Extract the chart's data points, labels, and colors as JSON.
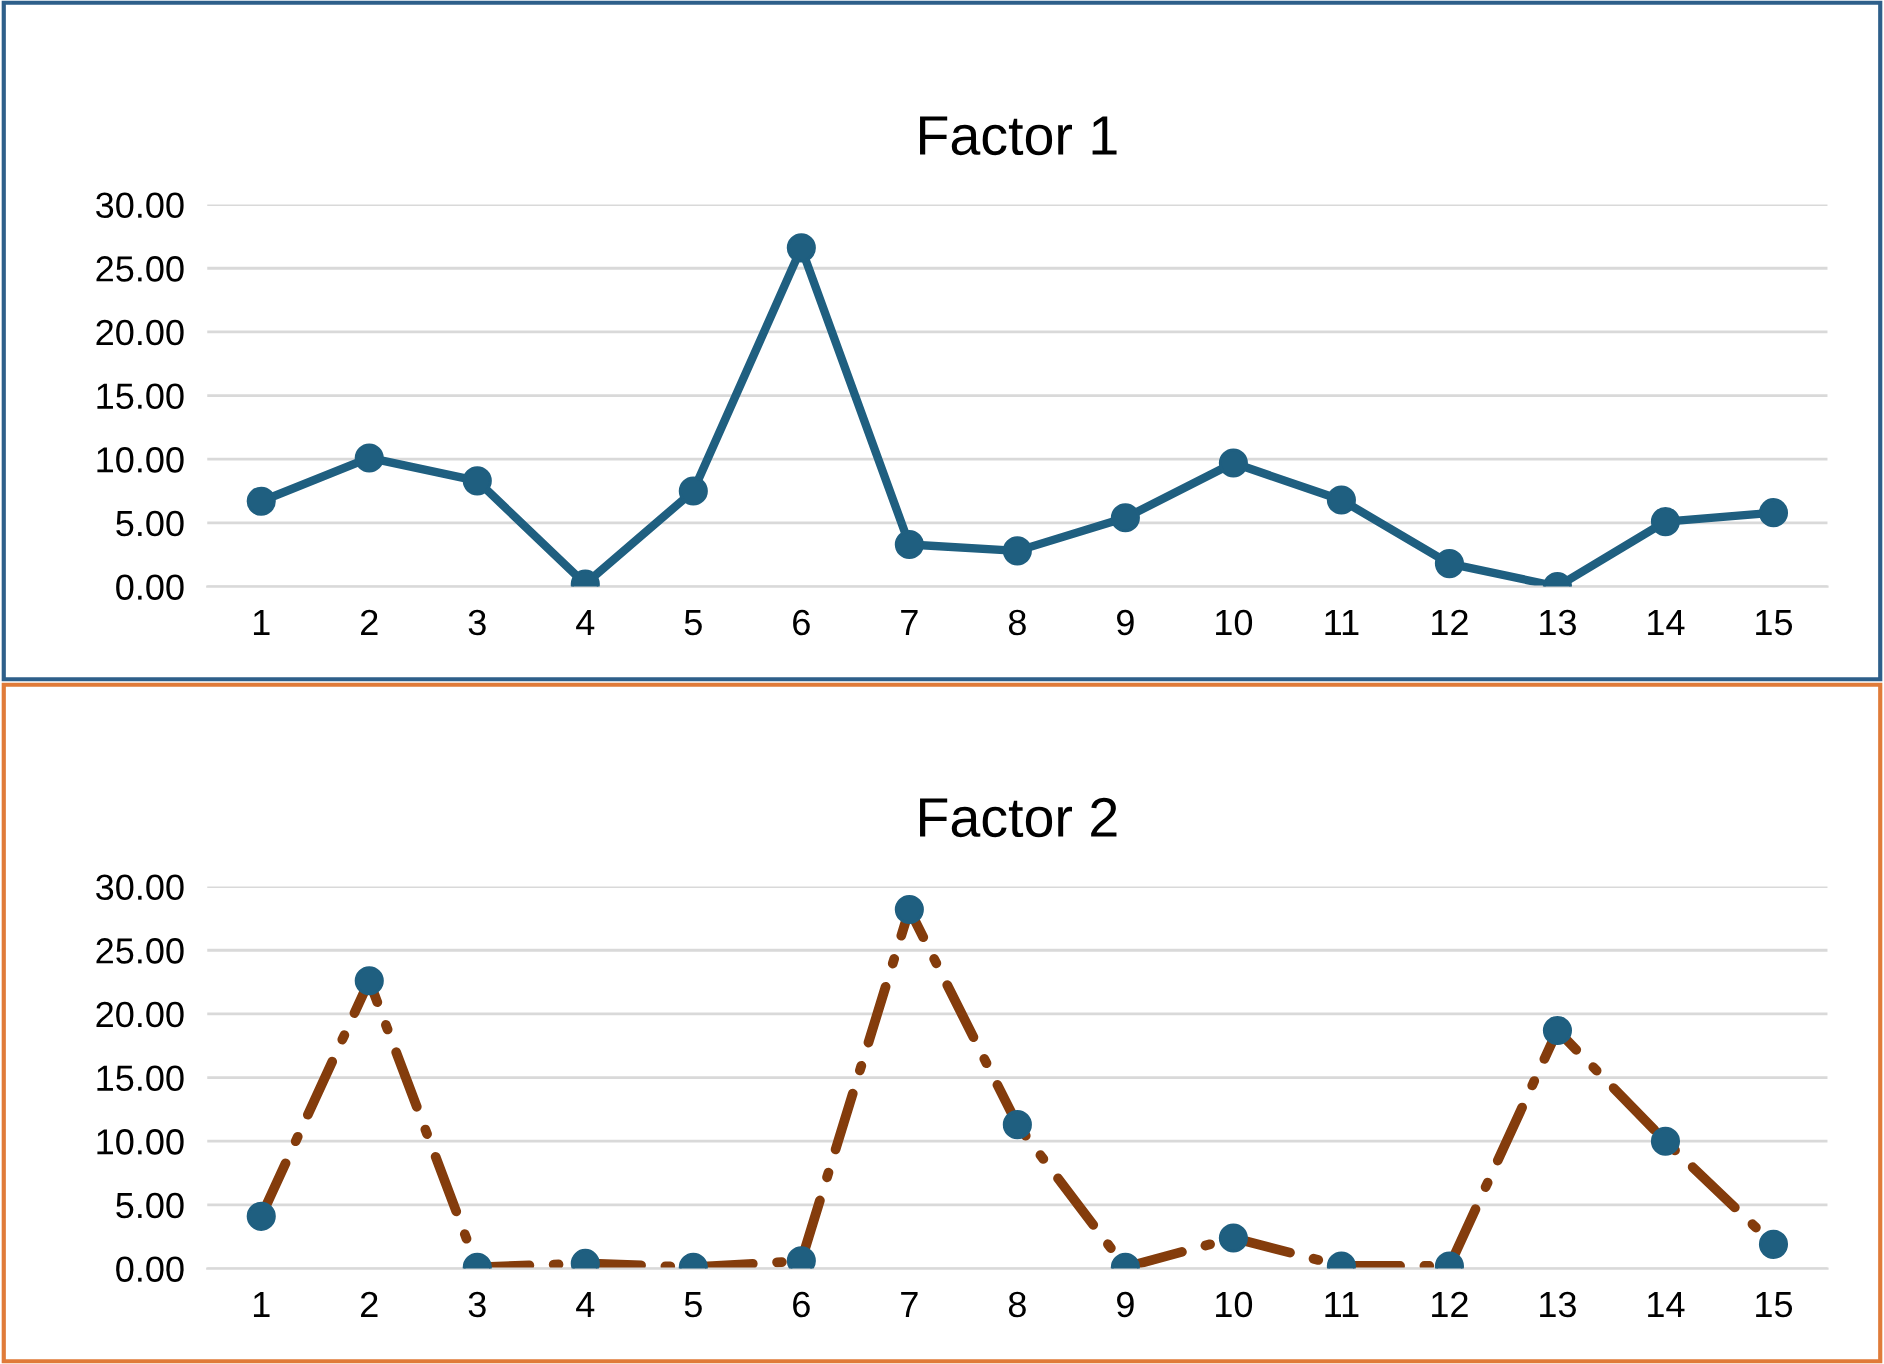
{
  "chart_data": [
    {
      "type": "line",
      "title": "Factor 1",
      "categories": [
        "1",
        "2",
        "3",
        "4",
        "5",
        "6",
        "7",
        "8",
        "9",
        "10",
        "11",
        "12",
        "13",
        "14",
        "15"
      ],
      "series": [
        {
          "color": "#1f5f80",
          "values": [
            6.7,
            10.1,
            8.3,
            0.2,
            7.5,
            26.6,
            3.3,
            2.8,
            5.4,
            9.7,
            6.8,
            1.8,
            0.0,
            5.1,
            5.8
          ]
        }
      ],
      "ylim": [
        0,
        30
      ],
      "yticks": [
        {
          "value": 0,
          "label": "0.00"
        },
        {
          "value": 5,
          "label": "5.00"
        },
        {
          "value": 10,
          "label": "10.00"
        },
        {
          "value": 15,
          "label": "15.00"
        },
        {
          "value": 20,
          "label": "20.00"
        },
        {
          "value": 25,
          "label": "25.00"
        },
        {
          "value": 30,
          "label": "30.00"
        }
      ],
      "grid": "y",
      "marker": "circle",
      "line_style": "solid"
    },
    {
      "type": "line",
      "title": "Factor 2",
      "categories": [
        "1",
        "2",
        "3",
        "4",
        "5",
        "6",
        "7",
        "8",
        "9",
        "10",
        "11",
        "12",
        "13",
        "14",
        "15"
      ],
      "series": [
        {
          "color": "#843c0c",
          "colors": [
            "#1f5f80",
            "#1f5f80",
            "#1f5f80",
            "#1f5f80",
            "#1f5f80",
            "#1f5f80",
            "#1f5f80",
            "#1f5f80",
            "#1f5f80",
            "#1f5f80",
            "#1f5f80",
            "#1f5f80",
            "#1f5f80",
            "#1f5f80",
            "#1f5f80"
          ],
          "values": [
            4.1,
            22.6,
            0.1,
            0.4,
            0.1,
            0.6,
            28.2,
            11.3,
            0.1,
            2.4,
            0.2,
            0.2,
            18.7,
            10.0,
            1.9
          ]
        }
      ],
      "ylim": [
        0,
        30
      ],
      "yticks": [
        {
          "value": 0,
          "label": "0.00"
        },
        {
          "value": 5,
          "label": "5.00"
        },
        {
          "value": 10,
          "label": "10.00"
        },
        {
          "value": 15,
          "label": "15.00"
        },
        {
          "value": 20,
          "label": "20.00"
        },
        {
          "value": 25,
          "label": "25.00"
        },
        {
          "value": 30,
          "label": "30.00"
        }
      ],
      "grid": "y",
      "marker": "circle",
      "line_style": "dashed"
    }
  ]
}
